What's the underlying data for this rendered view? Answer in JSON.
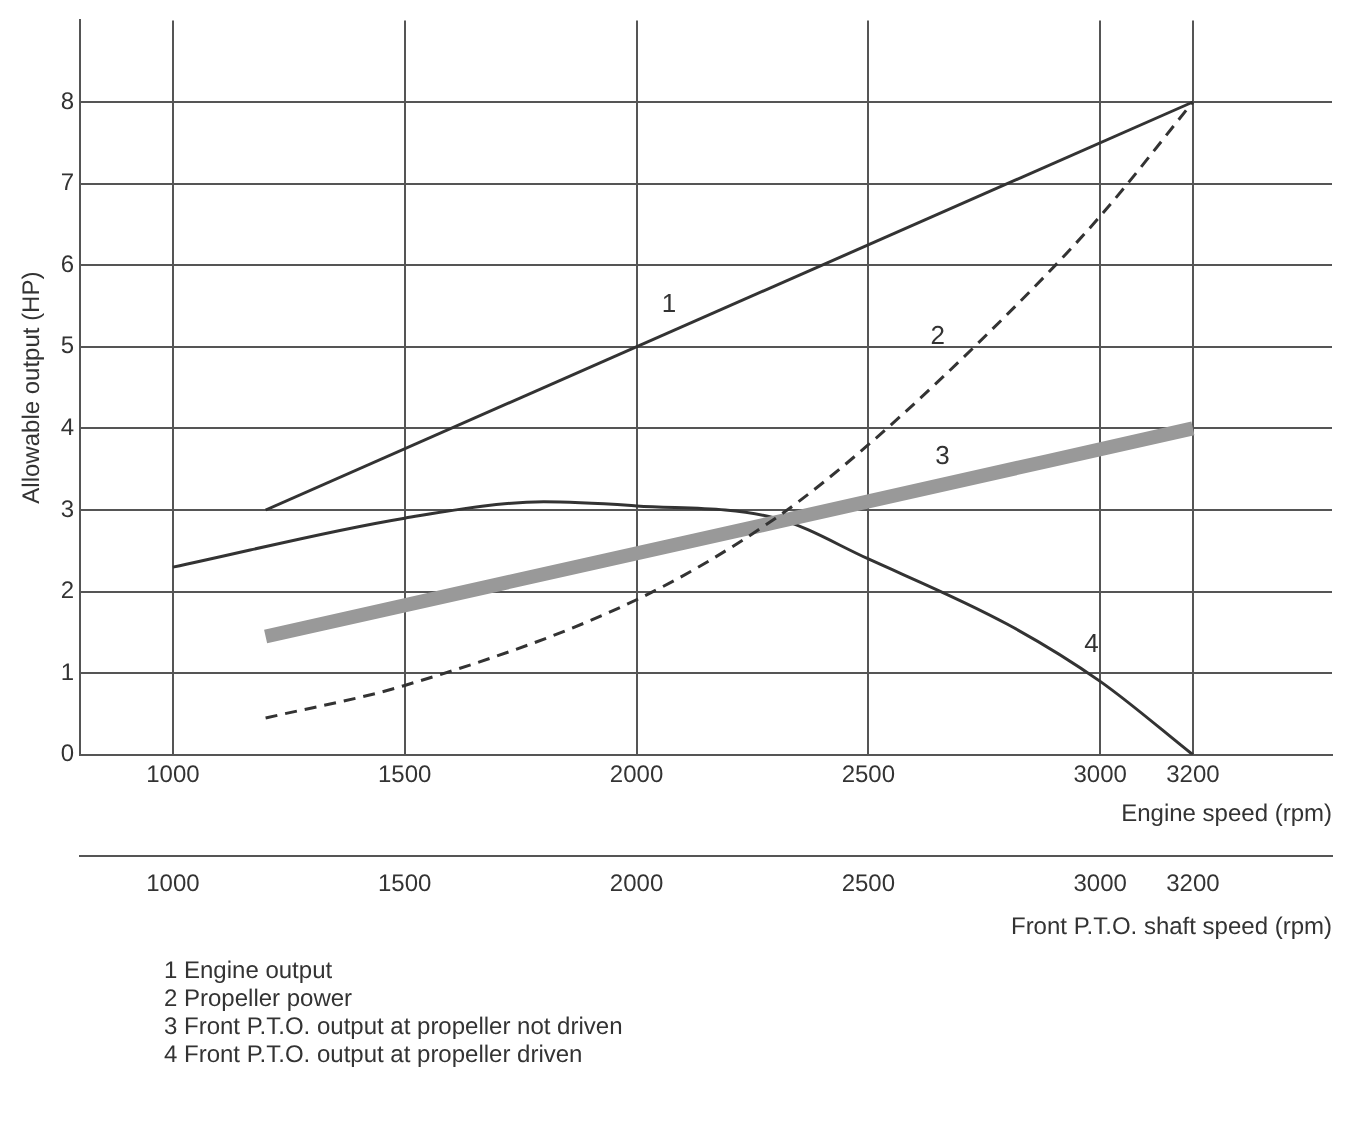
{
  "chart_data": {
    "type": "line",
    "xlabel": "Engine speed (rpm)",
    "ylabel": "Allowable output (HP)",
    "x2label": "Front P.T.O. shaft speed (rpm)",
    "xlim": [
      800,
      3500
    ],
    "xticks": [
      1000,
      1500,
      2000,
      2500,
      3000,
      3200
    ],
    "x2lim": [
      800,
      3500
    ],
    "x2ticks": [
      1000,
      1500,
      2000,
      2500,
      3000,
      3200
    ],
    "ylim": [
      0,
      9
    ],
    "yticks": [
      0,
      1,
      2,
      3,
      4,
      5,
      6,
      7,
      8
    ],
    "grid": true,
    "legend": false,
    "marker": "none",
    "series": [
      {
        "name": "1",
        "color": "#333333",
        "line_style": "solid",
        "x": [
          1200,
          3200
        ],
        "values": [
          3,
          8
        ]
      },
      {
        "name": "2",
        "color": "#333333",
        "line_style": "dashed",
        "x": [
          1200,
          1500,
          2000,
          2300,
          2500,
          2800,
          3000,
          3200
        ],
        "values": [
          0.45,
          0.85,
          1.9,
          2.9,
          3.8,
          5.4,
          6.6,
          8
        ]
      },
      {
        "name": "3",
        "color": "#999999",
        "line_style": "solid",
        "x": [
          1200,
          2300,
          3200
        ],
        "values": [
          1.45,
          2.85,
          4
        ]
      },
      {
        "name": "4",
        "color": "#333333",
        "line_style": "solid",
        "x": [
          1000,
          1500,
          1800,
          2000,
          2300,
          2500,
          2800,
          3000,
          3200
        ],
        "values": [
          2.3,
          2.9,
          3.1,
          3.05,
          2.9,
          2.4,
          1.6,
          0.9,
          0
        ]
      }
    ],
    "annotations": [
      "1 Engine output",
      "2 Propeller power",
      "3 Front P.T.O. output at propeller not driven",
      "4 Front P.T.O. output at propeller driven"
    ]
  }
}
